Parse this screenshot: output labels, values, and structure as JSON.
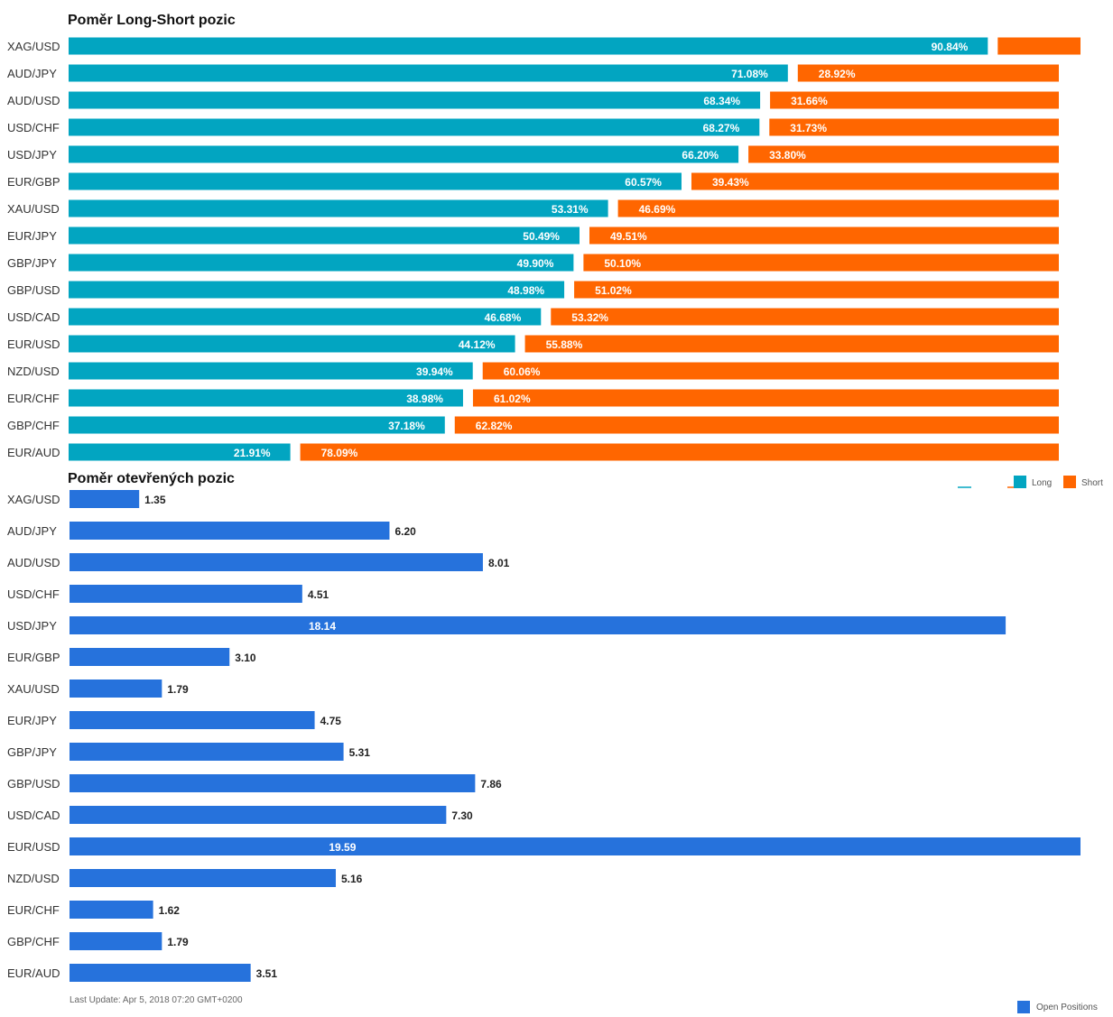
{
  "colors": {
    "long": "#02a5c1",
    "short": "#ff6600",
    "open": "#2672dc",
    "text": "#333333",
    "legend_text": "#555555",
    "footer_text": "#666666"
  },
  "charts": {
    "long_short": {
      "title": "Poměr Long-Short pozic",
      "legend": {
        "long_label": "Long",
        "short_label": "Short"
      }
    },
    "open_positions": {
      "title": "Poměr otevřených pozic",
      "legend": {
        "label": "Open Positions"
      }
    }
  },
  "footer": {
    "last_update": "Last Update: Apr 5, 2018 07:20 GMT+0200"
  },
  "chart_data": [
    {
      "type": "bar",
      "orientation": "horizontal",
      "stacked": true,
      "title": "Poměr Long-Short pozic",
      "categories": [
        "XAG/USD",
        "AUD/JPY",
        "AUD/USD",
        "USD/CHF",
        "USD/JPY",
        "EUR/GBP",
        "XAU/USD",
        "EUR/JPY",
        "GBP/JPY",
        "GBP/USD",
        "USD/CAD",
        "EUR/USD",
        "NZD/USD",
        "EUR/CHF",
        "GBP/CHF",
        "EUR/AUD"
      ],
      "series": [
        {
          "name": "Long",
          "values": [
            90.84,
            71.08,
            68.34,
            68.27,
            66.2,
            60.57,
            53.31,
            50.49,
            49.9,
            48.98,
            46.68,
            44.12,
            39.94,
            38.98,
            37.18,
            21.91
          ],
          "labels": [
            "90.84%",
            "71.08%",
            "68.34%",
            "68.27%",
            "66.20%",
            "60.57%",
            "53.31%",
            "50.49%",
            "49.90%",
            "48.98%",
            "46.68%",
            "44.12%",
            "39.94%",
            "38.98%",
            "37.18%",
            "21.91%"
          ]
        },
        {
          "name": "Short",
          "values": [
            9.16,
            28.92,
            31.66,
            31.73,
            33.8,
            39.43,
            46.69,
            49.51,
            50.1,
            51.02,
            53.32,
            55.88,
            60.06,
            61.02,
            62.82,
            78.09
          ],
          "labels": [
            "",
            "28.92%",
            "31.66%",
            "31.73%",
            "33.80%",
            "39.43%",
            "46.69%",
            "49.51%",
            "50.10%",
            "51.02%",
            "53.32%",
            "55.88%",
            "60.06%",
            "61.02%",
            "62.82%",
            "78.09%"
          ]
        }
      ],
      "grid": false,
      "legend_position": "bottom-right"
    },
    {
      "type": "bar",
      "orientation": "horizontal",
      "title": "Poměr otevřených pozic",
      "categories": [
        "XAG/USD",
        "AUD/JPY",
        "AUD/USD",
        "USD/CHF",
        "USD/JPY",
        "EUR/GBP",
        "XAU/USD",
        "EUR/JPY",
        "GBP/JPY",
        "GBP/USD",
        "USD/CAD",
        "EUR/USD",
        "NZD/USD",
        "EUR/CHF",
        "GBP/CHF",
        "EUR/AUD"
      ],
      "series": [
        {
          "name": "Open Positions",
          "values": [
            1.35,
            6.2,
            8.01,
            4.51,
            18.14,
            3.1,
            1.79,
            4.75,
            5.31,
            7.86,
            7.3,
            19.59,
            5.16,
            1.62,
            1.79,
            3.51
          ],
          "labels": [
            "1.35",
            "6.20",
            "8.01",
            "4.51",
            "18.14",
            "3.10",
            "1.79",
            "4.75",
            "5.31",
            "7.86",
            "7.30",
            "19.59",
            "5.16",
            "1.62",
            "1.79",
            "3.51"
          ]
        }
      ],
      "grid": false,
      "legend_position": "bottom-right"
    }
  ]
}
